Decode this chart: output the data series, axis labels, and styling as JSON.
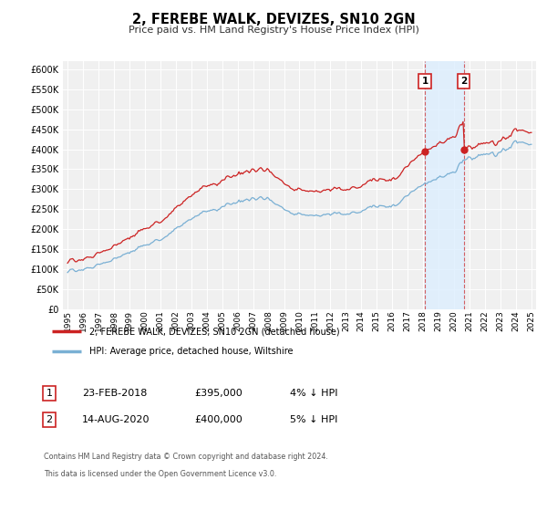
{
  "title": "2, FEREBE WALK, DEVIZES, SN10 2GN",
  "subtitle": "Price paid vs. HM Land Registry's House Price Index (HPI)",
  "hpi_color": "#7ab0d4",
  "price_color": "#cc2222",
  "shade_color": "#ddeeff",
  "background_color": "#f0f0f0",
  "ylim": [
    0,
    620000
  ],
  "yticks": [
    0,
    50000,
    100000,
    150000,
    200000,
    250000,
    300000,
    350000,
    400000,
    450000,
    500000,
    550000,
    600000
  ],
  "sale1_date": 2018.12,
  "sale1_price": 395000,
  "sale2_date": 2020.62,
  "sale2_price": 400000,
  "legend_line1": "2, FEREBE WALK, DEVIZES, SN10 2GN (detached house)",
  "legend_line2": "HPI: Average price, detached house, Wiltshire",
  "table_row1_num": "1",
  "table_row1_date": "23-FEB-2018",
  "table_row1_price": "£395,000",
  "table_row1_hpi": "4% ↓ HPI",
  "table_row2_num": "2",
  "table_row2_date": "14-AUG-2020",
  "table_row2_price": "£400,000",
  "table_row2_hpi": "5% ↓ HPI",
  "footnote1": "Contains HM Land Registry data © Crown copyright and database right 2024.",
  "footnote2": "This data is licensed under the Open Government Licence v3.0."
}
